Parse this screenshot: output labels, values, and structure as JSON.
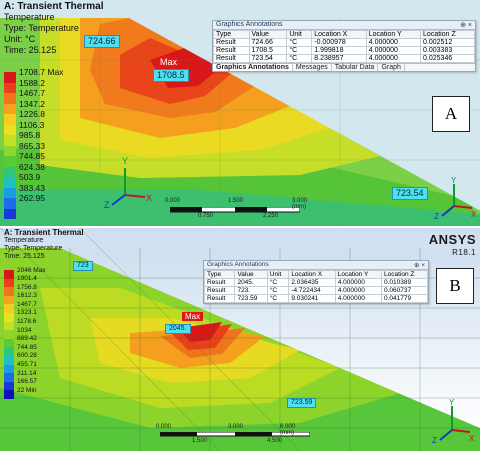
{
  "panel_a": {
    "title": "A: Transient Thermal",
    "info_type": "Temperature",
    "info_type2": "Type: Temperature",
    "info_unit": "Unit: °C",
    "info_time": "Time: 25.125",
    "legend": [
      {
        "value": "1708.7 Max",
        "color": "#d81818"
      },
      {
        "value": "1588.2",
        "color": "#e8401a"
      },
      {
        "value": "1467.7",
        "color": "#f0741c"
      },
      {
        "value": "1347.2",
        "color": "#f5a21e"
      },
      {
        "value": "1226.8",
        "color": "#f5cc1f"
      },
      {
        "value": "1106.3",
        "color": "#e8e21f"
      },
      {
        "value": "985.8",
        "color": "#c2e024"
      },
      {
        "value": "865.33",
        "color": "#8fd62c"
      },
      {
        "value": "744.85",
        "color": "#58cc34"
      },
      {
        "value": "624.38",
        "color": "#2ec67a"
      },
      {
        "value": "503.9",
        "color": "#1fc0c0"
      },
      {
        "value": "383.43",
        "color": "#1a9ce0"
      },
      {
        "value": "262.95",
        "color": "#1a6ee8"
      },
      {
        "value": "",
        "color": "#1838d8"
      }
    ],
    "callouts": {
      "c1": "724.66",
      "c2": "1708.5",
      "c3": "723.54",
      "max": "Max"
    },
    "annotations": {
      "title": "Graphics Annotations",
      "pin": "⊕ ×",
      "headers": [
        "Type",
        "Value",
        "Unit",
        "Location X",
        "Location Y",
        "Location Z"
      ],
      "rows": [
        [
          "Result",
          "724.66",
          "°C",
          "-0.000978",
          "4.000000",
          "0.002512"
        ],
        [
          "Result",
          "1708.5",
          "°C",
          "1.999818",
          "4.000000",
          "0.003383"
        ],
        [
          "Result",
          "723.54",
          "°C",
          "8.238957",
          "4.000000",
          "0.025346"
        ]
      ],
      "tabs": [
        "Graphics Annotations",
        "Messages",
        "Tabular Data",
        "Graph"
      ]
    },
    "scale": {
      "t0": "0.000",
      "t1": "1.500",
      "t2": "3.000 (mm)",
      "b1": "0.750",
      "b2": "2.250"
    },
    "box_label": "A"
  },
  "panel_b": {
    "title": "A: Transient Thermal",
    "info_type": "Temperature",
    "info_type2": "Type: Temperature",
    "info_time": "Time: 25.125",
    "legend": [
      {
        "value": "2046 Max",
        "color": "#d81818"
      },
      {
        "value": "1901.4",
        "color": "#e8401a"
      },
      {
        "value": "1756.8",
        "color": "#f0741c"
      },
      {
        "value": "1612.3",
        "color": "#f5a21e"
      },
      {
        "value": "1467.7",
        "color": "#f5cc1f"
      },
      {
        "value": "1323.1",
        "color": "#e8e21f"
      },
      {
        "value": "1178.6",
        "color": "#c2e024"
      },
      {
        "value": "1034",
        "color": "#8fd62c"
      },
      {
        "value": "889.42",
        "color": "#58cc34"
      },
      {
        "value": "744.85",
        "color": "#2ec67a"
      },
      {
        "value": "600.28",
        "color": "#1fc0c0"
      },
      {
        "value": "455.71",
        "color": "#1a9ce0"
      },
      {
        "value": "311.14",
        "color": "#1a6ee8"
      },
      {
        "value": "166.57",
        "color": "#1838d8"
      },
      {
        "value": "22 Min",
        "color": "#1010b8"
      }
    ],
    "callouts": {
      "c1": "723",
      "c2": "2045.",
      "c3": "723.59",
      "max": "Max"
    },
    "annotations": {
      "title": "Graphics Annotations",
      "pin": "⊕ ×",
      "headers": [
        "Type",
        "Value",
        "Unit",
        "Location X",
        "Location Y",
        "Location Z"
      ],
      "rows": [
        [
          "Result",
          "2045.",
          "°C",
          "2.036435",
          "4.000000",
          "0.010389"
        ],
        [
          "Result",
          "723.",
          "°C",
          "-4.722434",
          "4.000000",
          "0.060737"
        ],
        [
          "Result",
          "723.59",
          "°C",
          "9.030241",
          "4.000000",
          "0.041779"
        ]
      ]
    },
    "scale": {
      "t0": "0.000",
      "t1": "3.000",
      "t2": "6.000 (mm)",
      "b1": "1.500",
      "b2": "4.500"
    },
    "brand": "ANSYS",
    "version": "R18.1",
    "box_label": "B"
  }
}
